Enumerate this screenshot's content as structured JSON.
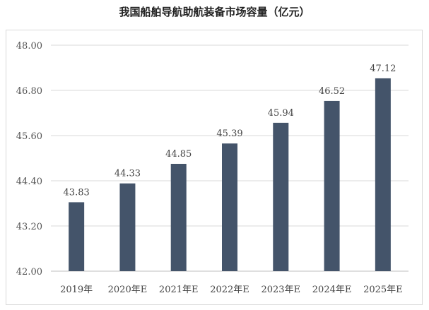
{
  "title": "我国船舶导航助航装备市场容量（亿元）",
  "chart_data": {
    "type": "bar",
    "title": "我国船舶导航助航装备市场容量（亿元）",
    "categories": [
      "2019年",
      "2020年E",
      "2021年E",
      "2022年E",
      "2023年E",
      "2024年E",
      "2025年E"
    ],
    "values": [
      43.83,
      44.33,
      44.85,
      45.39,
      45.94,
      46.52,
      47.12
    ],
    "data_labels": [
      "43.83",
      "44.33",
      "44.85",
      "45.39",
      "45.94",
      "46.52",
      "47.12"
    ],
    "ylim": [
      42.0,
      48.0
    ],
    "yticks": [
      42.0,
      43.2,
      44.4,
      45.6,
      46.8,
      48.0
    ],
    "ytick_labels": [
      "42.00",
      "43.20",
      "44.40",
      "45.60",
      "46.80",
      "48.00"
    ],
    "xlabel": "",
    "ylabel": "",
    "grid": true,
    "legend": "none",
    "bar_color": "#44546a"
  }
}
